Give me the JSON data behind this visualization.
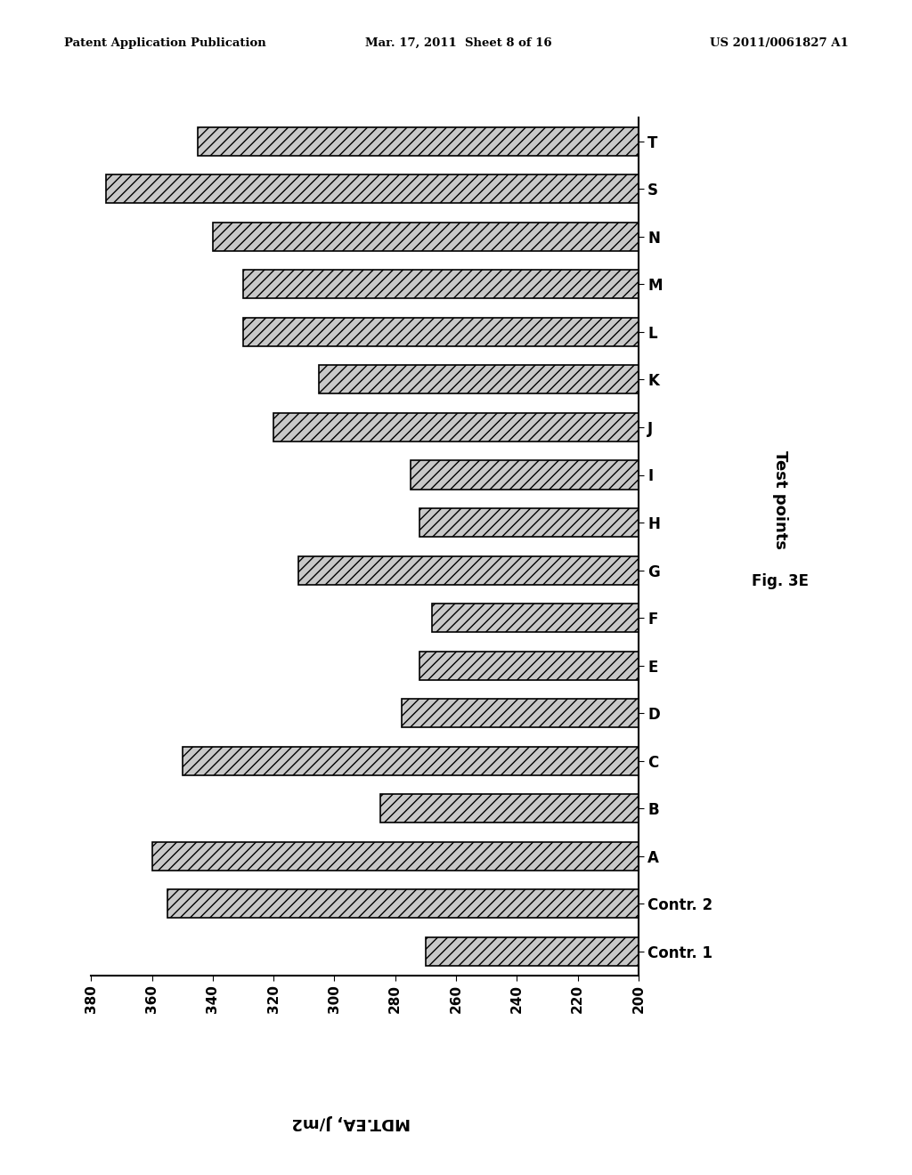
{
  "categories": [
    "Contr. 1",
    "Contr. 2",
    "A",
    "B",
    "C",
    "D",
    "E",
    "F",
    "G",
    "H",
    "I",
    "J",
    "K",
    "L",
    "M",
    "N",
    "S",
    "T"
  ],
  "values": [
    270,
    355,
    360,
    285,
    350,
    278,
    272,
    268,
    312,
    272,
    275,
    320,
    305,
    330,
    330,
    340,
    375,
    345
  ],
  "xlabel": "MDT.EA, J/m2",
  "ylabel": "Test points",
  "fig_label": "Fig. 3E",
  "xlim_min": 200,
  "xlim_max": 380,
  "bar_color": "#c8c8c8",
  "bar_edge_color": "#000000",
  "header_left": "Patent Application Publication",
  "header_center": "Mar. 17, 2011  Sheet 8 of 16",
  "header_right": "US 2011/0061827 A1",
  "background_color": "#ffffff"
}
